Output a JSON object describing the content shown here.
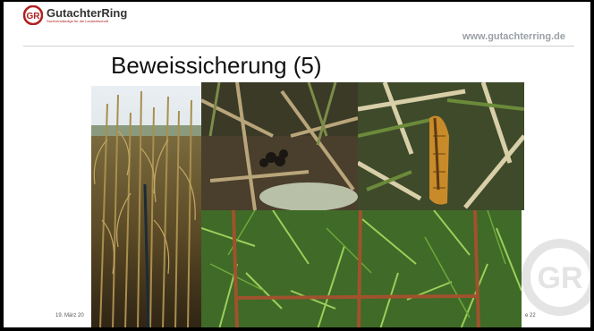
{
  "header": {
    "logo_name": "GutachterRing",
    "logo_tagline": "Sachverständige für die Landwirtschaft",
    "website": "www.gutachterring.de"
  },
  "slide": {
    "title": "Beweissicherung (5)",
    "photos": [
      "corn-field-photo",
      "ground-droppings-photo",
      "damaged-corn-cob-photo",
      "grass-measurement-frame-photo"
    ]
  },
  "footer": {
    "date": "19. März 20",
    "page": "e 22"
  },
  "colors": {
    "brand_red": "#b02020",
    "url_gray": "#9aa0a6"
  }
}
